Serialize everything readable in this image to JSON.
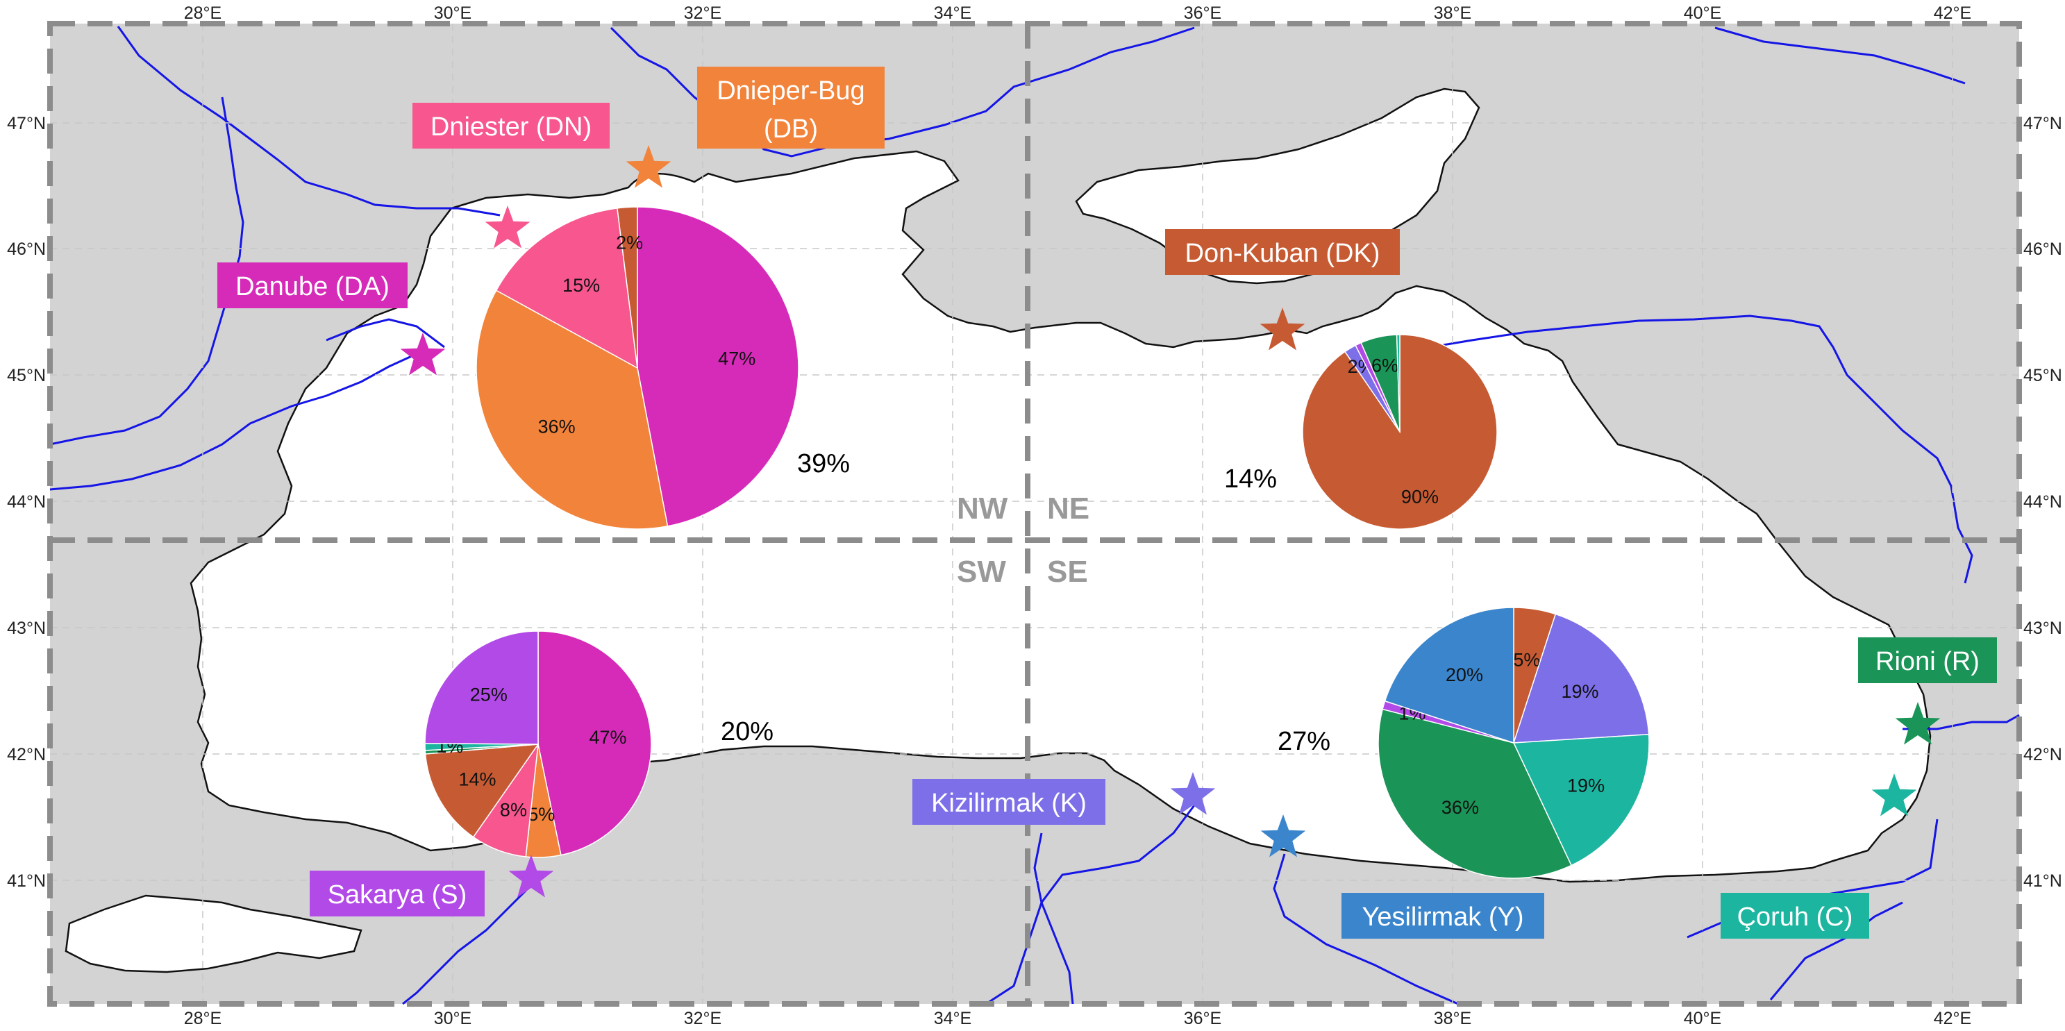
{
  "map": {
    "lon_ticks": [
      "28°E",
      "30°E",
      "32°E",
      "34°E",
      "36°E",
      "38°E",
      "40°E",
      "42°E"
    ],
    "lat_ticks": [
      "47°N",
      "46°N",
      "45°N",
      "44°N",
      "43°N",
      "42°N",
      "41°N"
    ],
    "quadrant_labels": {
      "nw": "NW",
      "ne": "NE",
      "sw": "SW",
      "se": "SE"
    },
    "colors": {
      "land": "#d3d3d3",
      "sea": "#ffffff",
      "rivers": "#1515e6",
      "coast": "#111111",
      "divider": "#8c8c8c",
      "grid": "#c8c8c8"
    }
  },
  "rivers": [
    {
      "id": "DA",
      "name": "Danube (DA)",
      "color": "#d62ab8"
    },
    {
      "id": "DN",
      "name": "Dniester (DN)",
      "color": "#f7568e"
    },
    {
      "id": "DB",
      "name": "Dnieper-Bug (DB)",
      "line1": "Dnieper-Bug",
      "line2": "(DB)",
      "color": "#f2833a"
    },
    {
      "id": "DK",
      "name": "Don-Kuban (DK)",
      "color": "#c65b33"
    },
    {
      "id": "R",
      "name": "Rioni (R)",
      "color": "#1a9457"
    },
    {
      "id": "C",
      "name": "Çoruh (C)",
      "color": "#1bb5a0"
    },
    {
      "id": "Y",
      "name": "Yesilirmak (Y)",
      "color": "#3a85cc"
    },
    {
      "id": "K",
      "name": "Kizilirmak (K)",
      "color": "#7d6fe8"
    },
    {
      "id": "S",
      "name": "Sakarya (S)",
      "color": "#b14ae6"
    }
  ],
  "chart_data": [
    {
      "type": "pie",
      "region": "NW",
      "share": "39%",
      "slices": [
        {
          "river": "DA",
          "value": 47,
          "label": "47%"
        },
        {
          "river": "DB",
          "value": 36,
          "label": "36%"
        },
        {
          "river": "DN",
          "value": 15,
          "label": "15%"
        },
        {
          "river": "DK",
          "value": 2,
          "label": "2%"
        }
      ]
    },
    {
      "type": "pie",
      "region": "NE",
      "share": "14%",
      "slices": [
        {
          "river": "DK",
          "value": 90,
          "label": "90%"
        },
        {
          "river": "K",
          "value": 2,
          "label": "2%"
        },
        {
          "river": "S",
          "value": 1,
          "label": ""
        },
        {
          "river": "R",
          "value": 6,
          "label": "6%"
        },
        {
          "river": "C",
          "value": 0.5,
          "label": ""
        }
      ]
    },
    {
      "type": "pie",
      "region": "SW",
      "share": "20%",
      "slices": [
        {
          "river": "DA",
          "value": 47,
          "label": "47%"
        },
        {
          "river": "DB",
          "value": 5,
          "label": "5%"
        },
        {
          "river": "DN",
          "value": 8,
          "label": "8%"
        },
        {
          "river": "DK",
          "value": 14,
          "label": "14%"
        },
        {
          "river": "R",
          "value": 0.5,
          "label": ""
        },
        {
          "river": "C",
          "value": 1,
          "label": "1%"
        },
        {
          "river": "S",
          "value": 25,
          "label": "25%"
        }
      ]
    },
    {
      "type": "pie",
      "region": "SE",
      "share": "27%",
      "slices": [
        {
          "river": "DK",
          "value": 5,
          "label": "5%"
        },
        {
          "river": "K",
          "value": 19,
          "label": "19%"
        },
        {
          "river": "C",
          "value": 19,
          "label": "19%"
        },
        {
          "river": "R",
          "value": 36,
          "label": "36%"
        },
        {
          "river": "S",
          "value": 1,
          "label": "1%"
        },
        {
          "river": "Y",
          "value": 20,
          "label": "20%"
        }
      ]
    }
  ]
}
